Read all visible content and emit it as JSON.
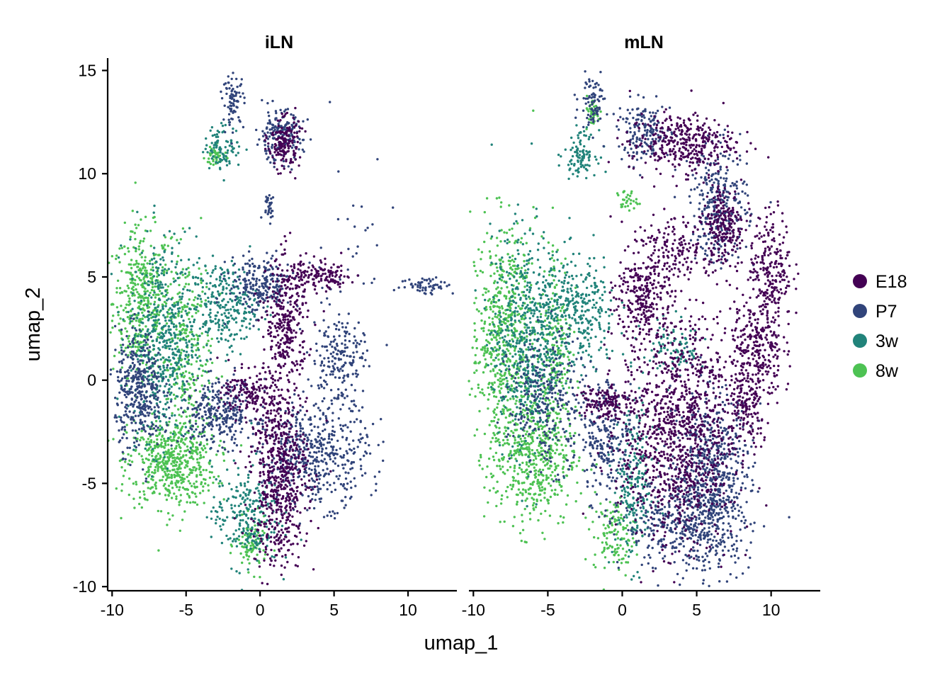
{
  "chart_data": {
    "type": "scatter",
    "xlabel": "umap_1",
    "ylabel": "umap_2",
    "xlim": [
      -10.3,
      13.3
    ],
    "ylim": [
      -10.2,
      15.6
    ],
    "x_ticks": [
      -10,
      -5,
      0,
      5,
      10
    ],
    "x_tick_labels": [
      "-10",
      "-5",
      "0",
      "5",
      "10"
    ],
    "y_ticks": [
      -10,
      -5,
      0,
      5,
      10,
      15
    ],
    "y_tick_labels": [
      "-10",
      "-5",
      "0",
      "5",
      "10",
      "15"
    ],
    "grid": false,
    "legend_position": "right",
    "legend": [
      {
        "label": "E18",
        "color": "#440154"
      },
      {
        "label": "P7",
        "color": "#31447A"
      },
      {
        "label": "3w",
        "color": "#21837A"
      },
      {
        "label": "8w",
        "color": "#4DC253"
      }
    ],
    "panels": [
      {
        "title": "iLN",
        "regions": [
          {
            "series": "8w",
            "cx": -8.0,
            "cy": 3.8,
            "rx": 1.1,
            "ry": 2.0,
            "n": 420
          },
          {
            "series": "P7",
            "cx": -8.2,
            "cy": -0.5,
            "rx": 0.9,
            "ry": 1.6,
            "n": 380
          },
          {
            "series": "3w",
            "cx": -6.6,
            "cy": 2.0,
            "rx": 1.3,
            "ry": 2.8,
            "n": 520
          },
          {
            "series": "8w",
            "cx": -6.0,
            "cy": -4.0,
            "rx": 1.7,
            "ry": 1.2,
            "n": 520
          },
          {
            "series": "8w",
            "cx": -5.0,
            "cy": 1.0,
            "rx": 1.0,
            "ry": 3.0,
            "n": 300
          },
          {
            "series": "3w",
            "cx": -2.5,
            "cy": 3.6,
            "rx": 1.3,
            "ry": 1.2,
            "n": 260
          },
          {
            "series": "P7",
            "cx": -2.8,
            "cy": -1.6,
            "rx": 1.5,
            "ry": 0.9,
            "n": 300
          },
          {
            "series": "P7",
            "cx": 0.0,
            "cy": 4.6,
            "rx": 1.2,
            "ry": 0.8,
            "n": 220
          },
          {
            "series": "E18",
            "cx": 1.8,
            "cy": 2.8,
            "rx": 0.8,
            "ry": 1.8,
            "n": 320
          },
          {
            "series": "E18",
            "cx": 4.0,
            "cy": 5.0,
            "rx": 1.4,
            "ry": 0.4,
            "n": 140
          },
          {
            "series": "E18",
            "cx": 1.3,
            "cy": -4.6,
            "rx": 1.1,
            "ry": 2.5,
            "n": 640
          },
          {
            "series": "P7",
            "cx": 3.8,
            "cy": -3.6,
            "rx": 2.0,
            "ry": 1.4,
            "n": 480
          },
          {
            "series": "P7",
            "cx": 5.3,
            "cy": 1.0,
            "rx": 1.0,
            "ry": 1.3,
            "n": 180
          },
          {
            "series": "E18",
            "cx": -0.6,
            "cy": -0.6,
            "rx": 1.1,
            "ry": 0.6,
            "n": 150
          },
          {
            "series": "3w",
            "cx": -1.0,
            "cy": -6.5,
            "rx": 1.3,
            "ry": 1.4,
            "n": 240
          },
          {
            "series": "8w",
            "cx": -0.6,
            "cy": -8.0,
            "rx": 0.6,
            "ry": 0.7,
            "n": 90
          },
          {
            "series": "P7",
            "cx": 1.3,
            "cy": 11.8,
            "rx": 0.9,
            "ry": 0.7,
            "n": 180
          },
          {
            "series": "E18",
            "cx": 1.6,
            "cy": 11.5,
            "rx": 0.6,
            "ry": 0.7,
            "n": 160
          },
          {
            "series": "3w",
            "cx": -2.5,
            "cy": 11.3,
            "rx": 0.7,
            "ry": 0.6,
            "n": 90
          },
          {
            "series": "P7",
            "cx": -1.8,
            "cy": 13.5,
            "rx": 0.4,
            "ry": 0.7,
            "n": 80
          },
          {
            "series": "8w",
            "cx": -3.0,
            "cy": 10.8,
            "rx": 0.4,
            "ry": 0.3,
            "n": 40
          },
          {
            "series": "P7",
            "cx": 0.6,
            "cy": 8.5,
            "rx": 0.25,
            "ry": 0.4,
            "n": 30
          },
          {
            "series": "P7",
            "cx": 11.3,
            "cy": 4.6,
            "rx": 1.0,
            "ry": 0.25,
            "n": 60
          },
          {
            "series": "P7",
            "cx": 6.2,
            "cy": 6.0,
            "rx": 1.5,
            "ry": 3.0,
            "n": 40
          }
        ]
      },
      {
        "title": "mLN",
        "regions": [
          {
            "series": "8w",
            "cx": -8.0,
            "cy": 2.5,
            "rx": 1.2,
            "ry": 2.8,
            "n": 560
          },
          {
            "series": "3w",
            "cx": -6.5,
            "cy": 2.0,
            "rx": 1.3,
            "ry": 3.0,
            "n": 560
          },
          {
            "series": "8w",
            "cx": -6.0,
            "cy": -3.6,
            "rx": 1.7,
            "ry": 2.0,
            "n": 560
          },
          {
            "series": "P7",
            "cx": -5.0,
            "cy": -1.0,
            "rx": 1.5,
            "ry": 1.8,
            "n": 300
          },
          {
            "series": "3w",
            "cx": -3.0,
            "cy": 3.2,
            "rx": 1.5,
            "ry": 1.6,
            "n": 320
          },
          {
            "series": "8w",
            "cx": -4.4,
            "cy": 1.8,
            "rx": 0.6,
            "ry": 3.0,
            "n": 180
          },
          {
            "series": "P7",
            "cx": -1.0,
            "cy": -2.8,
            "rx": 1.0,
            "ry": 1.6,
            "n": 220
          },
          {
            "series": "E18",
            "cx": -1.3,
            "cy": -1.0,
            "rx": 1.0,
            "ry": 0.5,
            "n": 130
          },
          {
            "series": "E18",
            "cx": 1.5,
            "cy": 4.0,
            "rx": 1.1,
            "ry": 1.4,
            "n": 300
          },
          {
            "series": "E18",
            "cx": 3.8,
            "cy": -2.5,
            "rx": 2.2,
            "ry": 3.0,
            "n": 1100
          },
          {
            "series": "P7",
            "cx": 6.0,
            "cy": -4.8,
            "rx": 1.5,
            "ry": 2.4,
            "n": 620
          },
          {
            "series": "P7",
            "cx": 4.0,
            "cy": -7.0,
            "rx": 2.3,
            "ry": 1.2,
            "n": 360
          },
          {
            "series": "P7",
            "cx": 6.5,
            "cy": 8.5,
            "rx": 1.1,
            "ry": 1.6,
            "n": 280
          },
          {
            "series": "E18",
            "cx": 6.8,
            "cy": 7.5,
            "rx": 0.8,
            "ry": 1.2,
            "n": 220
          },
          {
            "series": "E18",
            "cx": 4.0,
            "cy": 11.5,
            "rx": 2.0,
            "ry": 0.8,
            "n": 360
          },
          {
            "series": "P7",
            "cx": 1.5,
            "cy": 12.0,
            "rx": 1.0,
            "ry": 0.8,
            "n": 160
          },
          {
            "series": "3w",
            "cx": -2.8,
            "cy": 11.0,
            "rx": 0.6,
            "ry": 0.6,
            "n": 100
          },
          {
            "series": "P7",
            "cx": -2.0,
            "cy": 13.5,
            "rx": 0.5,
            "ry": 0.7,
            "n": 80
          },
          {
            "series": "8w",
            "cx": -2.0,
            "cy": 13.0,
            "rx": 0.3,
            "ry": 0.4,
            "n": 40
          },
          {
            "series": "E18",
            "cx": 10.0,
            "cy": 5.5,
            "rx": 0.8,
            "ry": 1.5,
            "n": 220
          },
          {
            "series": "E18",
            "cx": 9.0,
            "cy": 1.5,
            "rx": 1.0,
            "ry": 1.6,
            "n": 300
          },
          {
            "series": "E18",
            "cx": 8.4,
            "cy": -1.5,
            "rx": 0.7,
            "ry": 1.0,
            "n": 120
          },
          {
            "series": "E18",
            "cx": 3.5,
            "cy": 6.5,
            "rx": 1.5,
            "ry": 0.8,
            "n": 140
          },
          {
            "series": "8w",
            "cx": -0.5,
            "cy": -7.5,
            "rx": 0.8,
            "ry": 1.0,
            "n": 120
          },
          {
            "series": "3w",
            "cx": 0.8,
            "cy": -5.0,
            "rx": 0.8,
            "ry": 2.2,
            "n": 220
          },
          {
            "series": "3w",
            "cx": 3.5,
            "cy": 1.5,
            "rx": 1.2,
            "ry": 0.8,
            "n": 90
          },
          {
            "series": "8w",
            "cx": 0.3,
            "cy": 8.7,
            "rx": 0.4,
            "ry": 0.3,
            "n": 30
          }
        ]
      }
    ]
  }
}
